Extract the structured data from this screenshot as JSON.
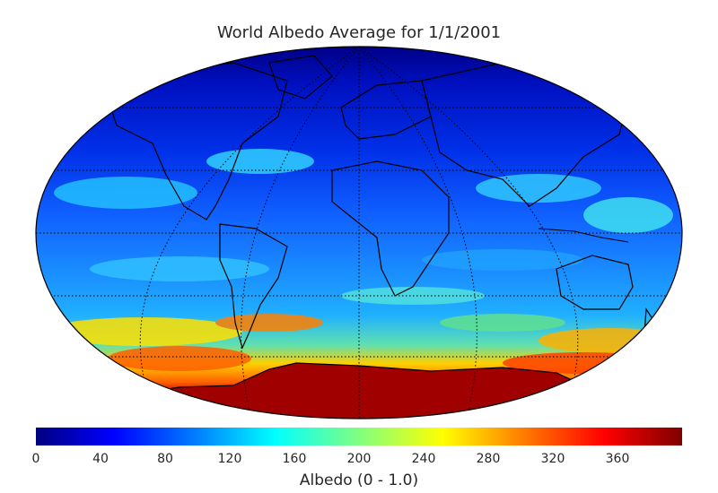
{
  "title": "World Albedo Average for 1/1/2001",
  "colorbar": {
    "label": "Albedo (0 - 1.0)",
    "ticks": [
      "0",
      "40",
      "80",
      "120",
      "160",
      "200",
      "240",
      "280",
      "320",
      "360"
    ],
    "min": 0,
    "max": 400,
    "colormap": "jet"
  },
  "map": {
    "projection": "robinson",
    "graticule": "dotted",
    "coastlines": true,
    "country_borders": true
  },
  "colors": {
    "ocean_low": "#0a0aa0",
    "antarctica": "#a00000",
    "graticule": "#000000"
  }
}
